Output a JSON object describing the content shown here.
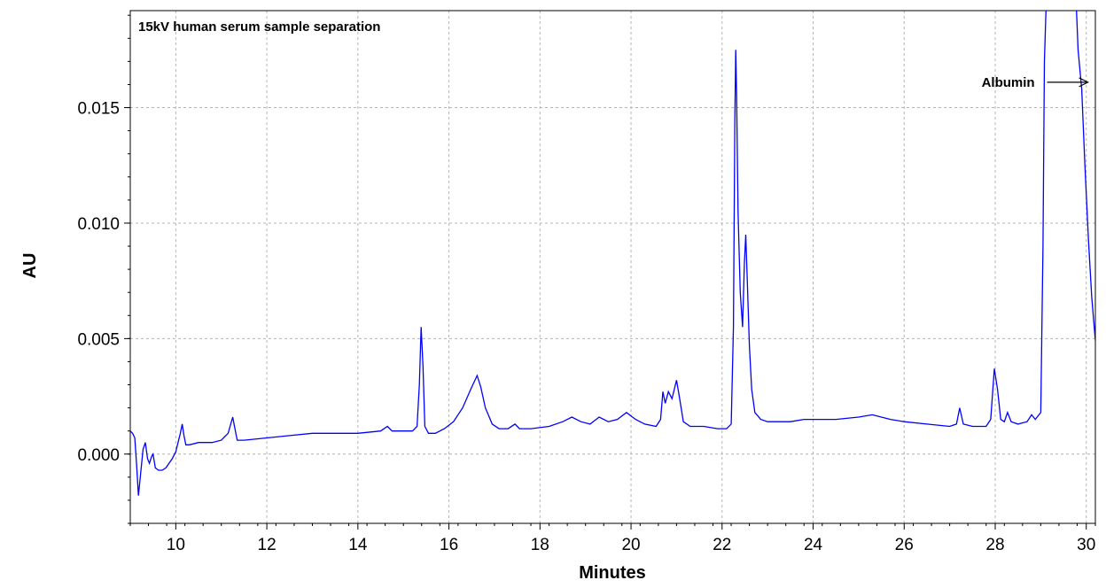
{
  "chart_data": {
    "type": "line",
    "title": "15kV human serum sample separation",
    "xlabel": "Minutes",
    "ylabel": "AU",
    "xlim": [
      9.0,
      30.2
    ],
    "ylim": [
      -0.003,
      0.0192
    ],
    "xticks": [
      10,
      12,
      14,
      16,
      18,
      20,
      22,
      24,
      26,
      28,
      30
    ],
    "xtick_labels": [
      "10",
      "12",
      "14",
      "16",
      "18",
      "20",
      "22",
      "24",
      "26",
      "28",
      "30"
    ],
    "xminor_step": 0.4,
    "yticks": [
      0.0,
      0.005,
      0.01,
      0.015
    ],
    "ytick_labels": [
      "0.000",
      "0.005",
      "0.010",
      "0.015"
    ],
    "yminor_step": 0.001,
    "grid": true,
    "legend": "none",
    "line_color": "#0000ff",
    "annotations": [
      {
        "text": "Albumin",
        "arrow": "right",
        "x": 27.7,
        "y": 0.0161
      }
    ],
    "series": [
      {
        "points": [
          [
            9.0,
            0.001
          ],
          [
            9.05,
            0.0009
          ],
          [
            9.1,
            0.0007
          ],
          [
            9.14,
            -0.0005
          ],
          [
            9.18,
            -0.0018
          ],
          [
            9.22,
            -0.001
          ],
          [
            9.28,
            0.0002
          ],
          [
            9.33,
            0.0005
          ],
          [
            9.38,
            -0.0002
          ],
          [
            9.42,
            -0.0004
          ],
          [
            9.47,
            -0.0001
          ],
          [
            9.5,
            0.0
          ],
          [
            9.55,
            -0.0006
          ],
          [
            9.62,
            -0.0007
          ],
          [
            9.7,
            -0.0007
          ],
          [
            9.78,
            -0.0006
          ],
          [
            9.85,
            -0.0004
          ],
          [
            9.92,
            -0.0002
          ],
          [
            10.0,
            0.0001
          ],
          [
            10.05,
            0.0005
          ],
          [
            10.1,
            0.0009
          ],
          [
            10.14,
            0.0013
          ],
          [
            10.18,
            0.0008
          ],
          [
            10.22,
            0.0004
          ],
          [
            10.3,
            0.0004
          ],
          [
            10.5,
            0.0005
          ],
          [
            10.8,
            0.0005
          ],
          [
            11.0,
            0.0006
          ],
          [
            11.15,
            0.0009
          ],
          [
            11.25,
            0.0016
          ],
          [
            11.3,
            0.0011
          ],
          [
            11.35,
            0.0006
          ],
          [
            11.5,
            0.0006
          ],
          [
            12.0,
            0.0007
          ],
          [
            12.5,
            0.0008
          ],
          [
            13.0,
            0.0009
          ],
          [
            13.5,
            0.0009
          ],
          [
            14.0,
            0.0009
          ],
          [
            14.5,
            0.001
          ],
          [
            14.65,
            0.0012
          ],
          [
            14.75,
            0.001
          ],
          [
            15.0,
            0.001
          ],
          [
            15.2,
            0.001
          ],
          [
            15.3,
            0.0012
          ],
          [
            15.35,
            0.003
          ],
          [
            15.39,
            0.0055
          ],
          [
            15.43,
            0.0038
          ],
          [
            15.47,
            0.0012
          ],
          [
            15.55,
            0.0009
          ],
          [
            15.7,
            0.0009
          ],
          [
            15.9,
            0.0011
          ],
          [
            16.1,
            0.0014
          ],
          [
            16.3,
            0.002
          ],
          [
            16.5,
            0.0029
          ],
          [
            16.62,
            0.0034
          ],
          [
            16.7,
            0.0029
          ],
          [
            16.8,
            0.002
          ],
          [
            16.95,
            0.0013
          ],
          [
            17.1,
            0.0011
          ],
          [
            17.3,
            0.0011
          ],
          [
            17.45,
            0.0013
          ],
          [
            17.55,
            0.0011
          ],
          [
            17.8,
            0.0011
          ],
          [
            18.2,
            0.0012
          ],
          [
            18.5,
            0.0014
          ],
          [
            18.7,
            0.0016
          ],
          [
            18.9,
            0.0014
          ],
          [
            19.1,
            0.0013
          ],
          [
            19.3,
            0.0016
          ],
          [
            19.5,
            0.0014
          ],
          [
            19.7,
            0.0015
          ],
          [
            19.9,
            0.0018
          ],
          [
            20.1,
            0.0015
          ],
          [
            20.3,
            0.0013
          ],
          [
            20.55,
            0.0012
          ],
          [
            20.65,
            0.0015
          ],
          [
            20.7,
            0.0027
          ],
          [
            20.75,
            0.0022
          ],
          [
            20.82,
            0.0027
          ],
          [
            20.9,
            0.0024
          ],
          [
            21.0,
            0.0032
          ],
          [
            21.06,
            0.0025
          ],
          [
            21.15,
            0.0014
          ],
          [
            21.3,
            0.0012
          ],
          [
            21.6,
            0.0012
          ],
          [
            21.9,
            0.0011
          ],
          [
            22.1,
            0.0011
          ],
          [
            22.2,
            0.0013
          ],
          [
            22.25,
            0.0055
          ],
          [
            22.28,
            0.0145
          ],
          [
            22.3,
            0.0175
          ],
          [
            22.32,
            0.0155
          ],
          [
            22.35,
            0.0105
          ],
          [
            22.4,
            0.007
          ],
          [
            22.45,
            0.0055
          ],
          [
            22.49,
            0.0083
          ],
          [
            22.52,
            0.0095
          ],
          [
            22.56,
            0.0072
          ],
          [
            22.6,
            0.0047
          ],
          [
            22.65,
            0.0028
          ],
          [
            22.72,
            0.0018
          ],
          [
            22.85,
            0.0015
          ],
          [
            23.0,
            0.0014
          ],
          [
            23.5,
            0.0014
          ],
          [
            23.8,
            0.0015
          ],
          [
            24.5,
            0.0015
          ],
          [
            25.0,
            0.0016
          ],
          [
            25.3,
            0.0017
          ],
          [
            25.7,
            0.0015
          ],
          [
            26.0,
            0.0014
          ],
          [
            26.5,
            0.0013
          ],
          [
            27.0,
            0.0012
          ],
          [
            27.15,
            0.0013
          ],
          [
            27.22,
            0.002
          ],
          [
            27.3,
            0.0013
          ],
          [
            27.5,
            0.0012
          ],
          [
            27.8,
            0.0012
          ],
          [
            27.9,
            0.0015
          ],
          [
            27.98,
            0.0037
          ],
          [
            28.05,
            0.0028
          ],
          [
            28.12,
            0.0015
          ],
          [
            28.2,
            0.0014
          ],
          [
            28.27,
            0.0018
          ],
          [
            28.35,
            0.0014
          ],
          [
            28.5,
            0.0013
          ],
          [
            28.7,
            0.0014
          ],
          [
            28.8,
            0.0017
          ],
          [
            28.88,
            0.0015
          ],
          [
            29.0,
            0.0018
          ],
          [
            29.05,
            0.009
          ],
          [
            29.08,
            0.017
          ],
          [
            29.12,
            0.0195
          ],
          [
            29.5,
            0.0195
          ],
          [
            29.78,
            0.0195
          ],
          [
            29.82,
            0.0175
          ],
          [
            29.9,
            0.0158
          ],
          [
            29.97,
            0.0125
          ],
          [
            30.05,
            0.0092
          ],
          [
            30.12,
            0.0068
          ],
          [
            30.2,
            0.0049
          ]
        ]
      }
    ]
  }
}
